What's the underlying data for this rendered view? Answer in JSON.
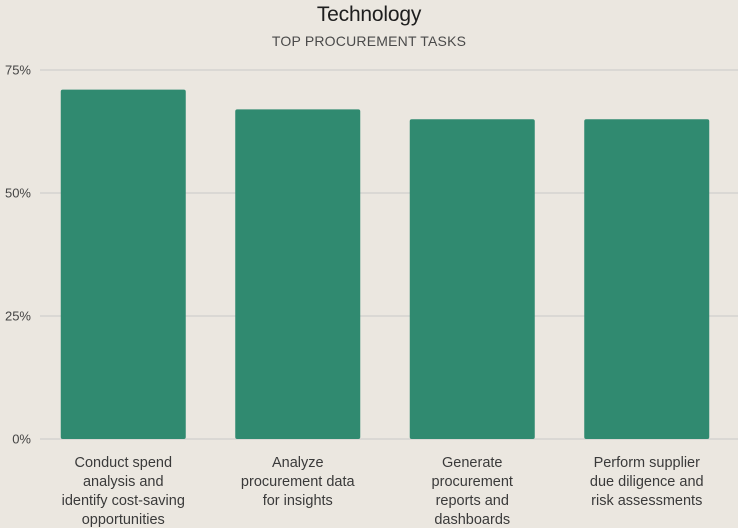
{
  "chart_data": {
    "type": "bar",
    "title": "Technology",
    "subtitle": "TOP PROCUREMENT TASKS",
    "categories": [
      [
        "Conduct spend",
        "analysis and",
        "identify cost-saving",
        "opportunities"
      ],
      [
        "Analyze",
        "procurement data",
        "for insights"
      ],
      [
        "Generate",
        "procurement",
        "reports and",
        "dashboards"
      ],
      [
        "Perform supplier",
        "due diligence and",
        "risk assessments"
      ]
    ],
    "values": [
      71,
      67,
      65,
      65
    ],
    "yticks": [
      {
        "value": 0,
        "label": "0%"
      },
      {
        "value": 25,
        "label": "25%"
      },
      {
        "value": 50,
        "label": "50%"
      },
      {
        "value": 75,
        "label": "75%"
      }
    ],
    "ylim": [
      0,
      75
    ],
    "grid": true,
    "bar_color": "#308a70",
    "grid_color": "#c9c9c9",
    "xlabel": "",
    "ylabel": ""
  }
}
